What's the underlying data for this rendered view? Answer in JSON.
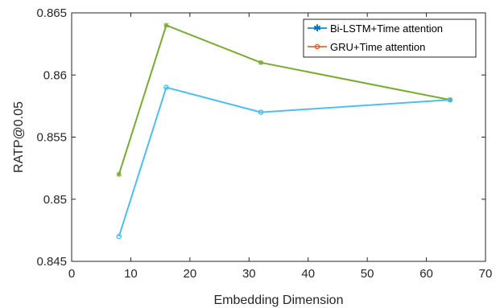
{
  "chart_data": {
    "type": "line",
    "xlabel": "Embedding Dimension",
    "ylabel": "RATP@0.05",
    "xlim": [
      0,
      70
    ],
    "ylim": [
      0.845,
      0.865
    ],
    "x_ticks": [
      0,
      10,
      20,
      30,
      40,
      50,
      60,
      70
    ],
    "x_tick_labels": [
      "0",
      "10",
      "20",
      "30",
      "40",
      "50",
      "60",
      "70"
    ],
    "y_ticks": [
      0.845,
      0.85,
      0.855,
      0.86,
      0.865
    ],
    "y_tick_labels": [
      "0.845",
      "0.85",
      "0.855",
      "0.86",
      "0.865"
    ],
    "grid": false,
    "legend_position": "top-right",
    "series": [
      {
        "name": "Bi-LSTM+Time attention",
        "legend_color": "#0072BD",
        "marker": "asterisk",
        "x": [
          8,
          16,
          32,
          64
        ],
        "y": [
          0.852,
          0.864,
          0.861,
          0.858
        ]
      },
      {
        "name": "GRU+Time attention",
        "legend_color": "#D95319",
        "marker": "circle",
        "x": [
          8,
          16,
          32,
          64
        ],
        "y": [
          0.847,
          0.859,
          0.857,
          0.858
        ]
      }
    ],
    "render_colors": [
      "#77AC30",
      "#4DBEEE"
    ]
  }
}
